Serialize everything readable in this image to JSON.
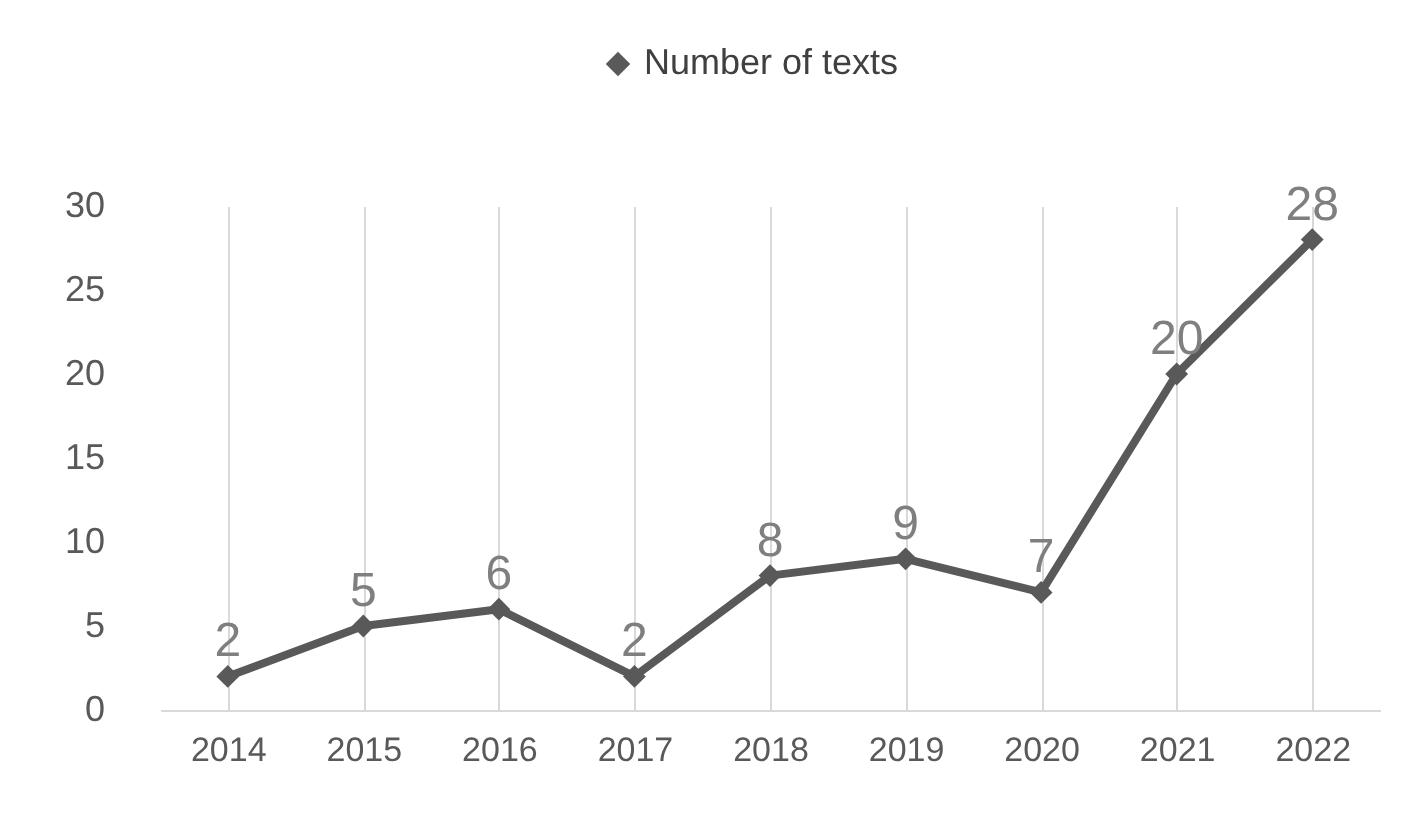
{
  "chart_data": {
    "type": "line",
    "categories": [
      "2014",
      "2015",
      "2016",
      "2017",
      "2018",
      "2019",
      "2020",
      "2021",
      "2022"
    ],
    "series": [
      {
        "name": "Number of texts",
        "color": "#595959",
        "values": [
          2,
          5,
          6,
          2,
          8,
          9,
          7,
          20,
          28
        ]
      }
    ],
    "ylim": [
      0,
      30
    ],
    "yticks": [
      0,
      5,
      10,
      15,
      20,
      25,
      30
    ],
    "grid": "x",
    "legend": "top",
    "marker": "diamond",
    "line_style": "solid",
    "data_labels": true
  }
}
